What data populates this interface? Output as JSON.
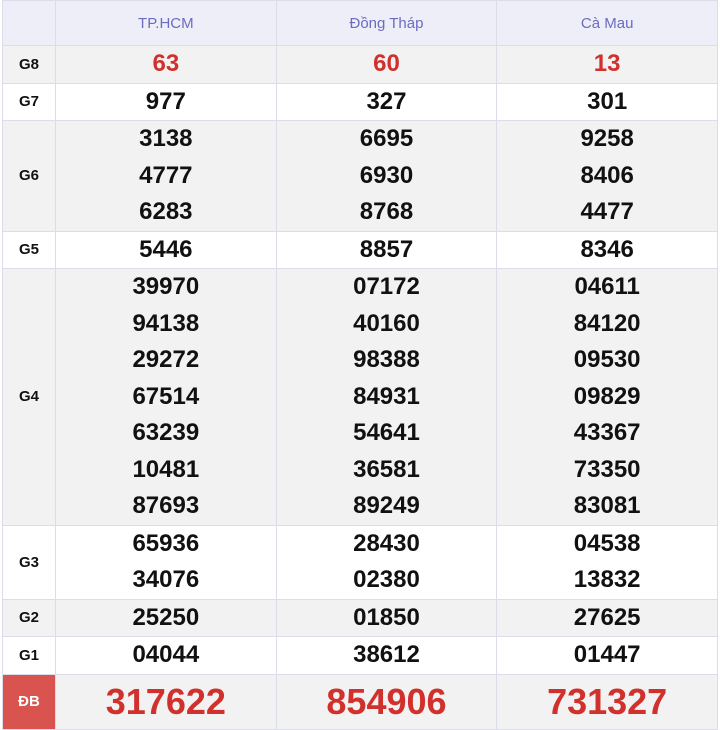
{
  "headers": [
    "TP.HCM",
    "Đồng Tháp",
    "Cà Mau"
  ],
  "colors": {
    "header_text": "#6b6bc0",
    "highlight": "#d0312d",
    "db_label_bg": "#d9534f"
  },
  "rows": [
    {
      "label": "G8",
      "style": "red",
      "values": [
        [
          "63"
        ],
        [
          "60"
        ],
        [
          "13"
        ]
      ]
    },
    {
      "label": "G7",
      "values": [
        [
          "977"
        ],
        [
          "327"
        ],
        [
          "301"
        ]
      ]
    },
    {
      "label": "G6",
      "values": [
        [
          "3138",
          "4777",
          "6283"
        ],
        [
          "6695",
          "6930",
          "8768"
        ],
        [
          "9258",
          "8406",
          "4477"
        ]
      ]
    },
    {
      "label": "G5",
      "values": [
        [
          "5446"
        ],
        [
          "8857"
        ],
        [
          "8346"
        ]
      ]
    },
    {
      "label": "G4",
      "values": [
        [
          "39970",
          "94138",
          "29272",
          "67514",
          "63239",
          "10481",
          "87693"
        ],
        [
          "07172",
          "40160",
          "98388",
          "84931",
          "54641",
          "36581",
          "89249"
        ],
        [
          "04611",
          "84120",
          "09530",
          "09829",
          "43367",
          "73350",
          "83081"
        ]
      ]
    },
    {
      "label": "G3",
      "values": [
        [
          "65936",
          "34076"
        ],
        [
          "28430",
          "02380"
        ],
        [
          "04538",
          "13832"
        ]
      ]
    },
    {
      "label": "G2",
      "values": [
        [
          "25250"
        ],
        [
          "01850"
        ],
        [
          "27625"
        ]
      ]
    },
    {
      "label": "G1",
      "values": [
        [
          "04044"
        ],
        [
          "38612"
        ],
        [
          "01447"
        ]
      ]
    },
    {
      "label": "ĐB",
      "style": "big",
      "values": [
        [
          "317622"
        ],
        [
          "854906"
        ],
        [
          "731327"
        ]
      ]
    }
  ]
}
